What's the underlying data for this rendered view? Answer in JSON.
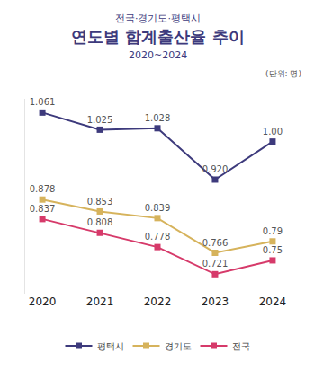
{
  "chart_data": {
    "type": "line",
    "subtitle": "전국·경기도·평택시",
    "title": "연도별 합계출산율 추이",
    "annotations": [
      "2020~2024",
      "(단위: 명)"
    ],
    "categories": [
      "2020",
      "2021",
      "2022",
      "2023",
      "2024"
    ],
    "series": [
      {
        "name": "평택시",
        "color": "#3d3a7c",
        "marker": "square",
        "line_style": "solid",
        "values": [
          1.061,
          1.025,
          1.028,
          0.92,
          1.0
        ],
        "value_labels": [
          "1.061",
          "1.025",
          "1.028",
          "0.920",
          "1.00"
        ]
      },
      {
        "name": "경기도",
        "color": "#d6b35c",
        "marker": "square",
        "line_style": "solid",
        "values": [
          0.878,
          0.853,
          0.839,
          0.766,
          0.79
        ],
        "value_labels": [
          "0.878",
          "0.853",
          "0.839",
          "0.766",
          "0.79"
        ]
      },
      {
        "name": "전국",
        "color": "#d63a6a",
        "marker": "square",
        "line_style": "solid",
        "values": [
          0.837,
          0.808,
          0.778,
          0.721,
          0.75
        ],
        "value_labels": [
          "0.837",
          "0.808",
          "0.778",
          "0.721",
          "0.75"
        ]
      }
    ],
    "ylim": [
      0.68,
      1.09
    ],
    "yticks": [],
    "grid": false,
    "legend": "bottom",
    "data_labels": true,
    "tick_labels": "x"
  }
}
